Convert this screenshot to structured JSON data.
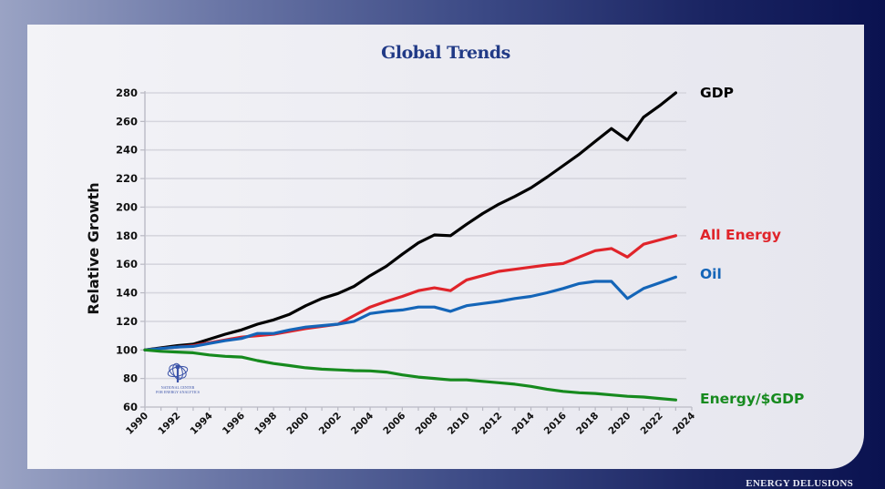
{
  "footer": {
    "brand": "ENERGY DELUSIONS"
  },
  "logo": {
    "line1": "NATIONAL CENTER",
    "line2": "FOR ENERGY ANALYTICS",
    "color": "#3a52a8"
  },
  "chart_data": {
    "type": "line",
    "title": "Global Trends",
    "xlabel": "",
    "ylabel": "Relative Growth",
    "xlim": [
      1990,
      2024
    ],
    "ylim": [
      60,
      280
    ],
    "grid": true,
    "x_ticks": [
      1990,
      1992,
      1994,
      1996,
      1998,
      2000,
      2002,
      2004,
      2006,
      2008,
      2010,
      2012,
      2014,
      2016,
      2018,
      2020,
      2022,
      2024
    ],
    "y_ticks": [
      60,
      80,
      100,
      120,
      140,
      160,
      180,
      200,
      220,
      240,
      260,
      280
    ],
    "legend": "right-end labels",
    "x": [
      1990,
      1991,
      1992,
      1993,
      1994,
      1995,
      1996,
      1997,
      1998,
      1999,
      2000,
      2001,
      2002,
      2003,
      2004,
      2005,
      2006,
      2007,
      2008,
      2009,
      2010,
      2011,
      2012,
      2013,
      2014,
      2015,
      2016,
      2017,
      2018,
      2019,
      2020,
      2021,
      2022,
      2023
    ],
    "series": [
      {
        "name": "GDP",
        "color": "#000000",
        "values": [
          100,
          101.5,
          103,
          104,
          107.5,
          111,
          114,
          118,
          121,
          125,
          131,
          136,
          139.5,
          144.5,
          152,
          158.5,
          167,
          175,
          180.5,
          180,
          188,
          195.5,
          202,
          207.5,
          213.5,
          221,
          229,
          237,
          246,
          255,
          247,
          263,
          271,
          280
        ]
      },
      {
        "name": "All Energy",
        "color": "#e0242a",
        "values": [
          100,
          101,
          102,
          103,
          105,
          107,
          109,
          110,
          111,
          113,
          115,
          116.5,
          118,
          124,
          130,
          134,
          137.5,
          141.5,
          143.5,
          141.5,
          149,
          152,
          155,
          156.5,
          158,
          159.5,
          160.5,
          165,
          169.5,
          171,
          165,
          174,
          177,
          180
        ]
      },
      {
        "name": "Oil",
        "color": "#1465b8",
        "values": [
          100,
          101,
          102,
          102.5,
          104.5,
          106.5,
          108,
          111.5,
          111.5,
          114,
          116,
          117,
          118,
          120,
          125.5,
          127,
          128,
          130,
          130,
          127,
          131,
          132.5,
          134,
          136,
          137.5,
          140,
          143,
          146.5,
          148,
          148,
          136,
          143,
          147,
          151
        ]
      },
      {
        "name": "Energy/$GDP",
        "color": "#168a1e",
        "values": [
          100,
          99,
          98.5,
          98,
          96.5,
          95.5,
          95,
          92.5,
          90.5,
          89,
          87.5,
          86.5,
          86,
          85.5,
          85.3,
          84.5,
          82.5,
          81,
          80,
          79,
          79,
          78,
          77,
          76,
          74.5,
          72.5,
          71,
          70,
          69.5,
          68.5,
          67.5,
          67,
          66,
          65
        ]
      }
    ]
  }
}
